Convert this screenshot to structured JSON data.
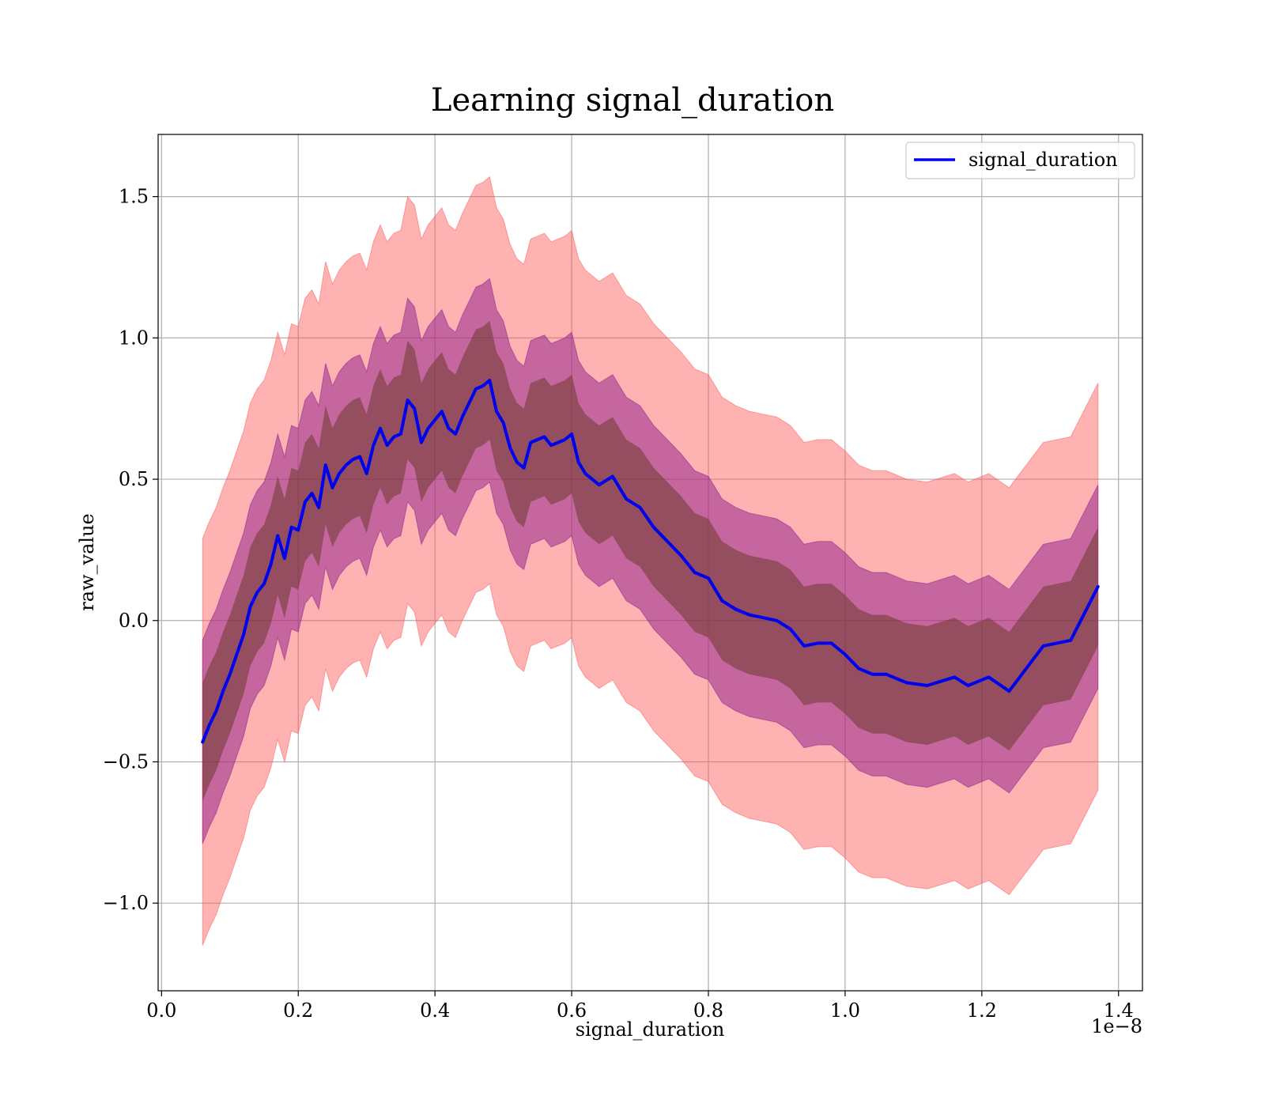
{
  "chart_data": {
    "type": "line",
    "title": "Learning signal_duration",
    "xlabel": "signal_duration",
    "ylabel": "raw_value",
    "x_offset_label": "1e−8",
    "xlim": [
      -0.005,
      1.435
    ],
    "ylim": [
      -1.31,
      1.72
    ],
    "x_ticks": [
      0.0,
      0.2,
      0.4,
      0.6,
      0.8,
      1.0,
      1.2,
      1.4
    ],
    "x_tick_labels": [
      "0.0",
      "0.2",
      "0.4",
      "0.6",
      "0.8",
      "1.0",
      "1.2",
      "1.4"
    ],
    "y_ticks": [
      -1.0,
      -0.5,
      0.0,
      0.5,
      1.0,
      1.5
    ],
    "y_tick_labels": [
      "−1.0",
      "−0.5",
      "0.0",
      "0.5",
      "1.0",
      "1.5"
    ],
    "grid": true,
    "legend": {
      "position": "top-right",
      "entries": [
        "signal_duration"
      ]
    },
    "colors": {
      "line": "#0000ee",
      "outer_band": "#ff5555",
      "inner_band": "#8b1a8b",
      "core_band": "#6b3a2a",
      "grid": "#b0b0b0"
    },
    "series": [
      {
        "name": "signal_duration",
        "x": [
          0.06,
          0.07,
          0.08,
          0.09,
          0.1,
          0.11,
          0.12,
          0.13,
          0.14,
          0.15,
          0.16,
          0.17,
          0.18,
          0.19,
          0.2,
          0.21,
          0.22,
          0.23,
          0.24,
          0.25,
          0.26,
          0.27,
          0.28,
          0.29,
          0.3,
          0.31,
          0.32,
          0.33,
          0.34,
          0.35,
          0.36,
          0.37,
          0.38,
          0.39,
          0.4,
          0.41,
          0.42,
          0.43,
          0.44,
          0.45,
          0.46,
          0.47,
          0.48,
          0.49,
          0.5,
          0.51,
          0.52,
          0.53,
          0.54,
          0.55,
          0.56,
          0.57,
          0.58,
          0.59,
          0.6,
          0.61,
          0.62,
          0.64,
          0.66,
          0.68,
          0.7,
          0.72,
          0.74,
          0.76,
          0.78,
          0.8,
          0.82,
          0.84,
          0.86,
          0.88,
          0.9,
          0.92,
          0.94,
          0.96,
          0.98,
          1.0,
          1.02,
          1.04,
          1.06,
          1.09,
          1.12,
          1.16,
          1.18,
          1.21,
          1.24,
          1.29,
          1.33,
          1.37
        ],
        "y": [
          -0.43,
          -0.37,
          -0.32,
          -0.25,
          -0.19,
          -0.12,
          -0.05,
          0.05,
          0.1,
          0.13,
          0.2,
          0.3,
          0.22,
          0.33,
          0.32,
          0.42,
          0.45,
          0.4,
          0.55,
          0.47,
          0.52,
          0.55,
          0.57,
          0.58,
          0.52,
          0.62,
          0.68,
          0.62,
          0.65,
          0.66,
          0.78,
          0.75,
          0.63,
          0.68,
          0.71,
          0.74,
          0.68,
          0.66,
          0.72,
          0.77,
          0.82,
          0.83,
          0.85,
          0.74,
          0.7,
          0.61,
          0.56,
          0.54,
          0.63,
          0.64,
          0.65,
          0.62,
          0.63,
          0.64,
          0.66,
          0.56,
          0.52,
          0.48,
          0.51,
          0.43,
          0.4,
          0.33,
          0.28,
          0.23,
          0.17,
          0.15,
          0.07,
          0.04,
          0.02,
          0.01,
          0.0,
          -0.03,
          -0.09,
          -0.08,
          -0.08,
          -0.12,
          -0.17,
          -0.19,
          -0.19,
          -0.22,
          -0.23,
          -0.2,
          -0.23,
          -0.2,
          -0.25,
          -0.09,
          -0.07,
          0.12
        ],
        "core_band_half_width": [
          0.21,
          0.21,
          0.21,
          0.21,
          0.21,
          0.21,
          0.21,
          0.21,
          0.21,
          0.21,
          0.21,
          0.21,
          0.21,
          0.21,
          0.21,
          0.21,
          0.21,
          0.21,
          0.21,
          0.21,
          0.21,
          0.21,
          0.21,
          0.21,
          0.21,
          0.21,
          0.21,
          0.21,
          0.21,
          0.21,
          0.21,
          0.21,
          0.21,
          0.21,
          0.21,
          0.21,
          0.21,
          0.21,
          0.21,
          0.21,
          0.21,
          0.21,
          0.21,
          0.21,
          0.21,
          0.21,
          0.21,
          0.21,
          0.21,
          0.21,
          0.21,
          0.21,
          0.21,
          0.21,
          0.21,
          0.21,
          0.21,
          0.21,
          0.21,
          0.21,
          0.21,
          0.21,
          0.21,
          0.21,
          0.21,
          0.21,
          0.21,
          0.21,
          0.21,
          0.21,
          0.21,
          0.21,
          0.21,
          0.21,
          0.21,
          0.21,
          0.21,
          0.21,
          0.21,
          0.21,
          0.21,
          0.21,
          0.21,
          0.21,
          0.21,
          0.21,
          0.21,
          0.21
        ],
        "inner_band_half_width": [
          0.36,
          0.36,
          0.36,
          0.36,
          0.36,
          0.36,
          0.36,
          0.36,
          0.36,
          0.36,
          0.36,
          0.36,
          0.36,
          0.36,
          0.36,
          0.36,
          0.36,
          0.36,
          0.36,
          0.36,
          0.36,
          0.36,
          0.36,
          0.36,
          0.36,
          0.36,
          0.36,
          0.36,
          0.36,
          0.36,
          0.36,
          0.36,
          0.36,
          0.36,
          0.36,
          0.36,
          0.36,
          0.36,
          0.36,
          0.36,
          0.36,
          0.36,
          0.36,
          0.36,
          0.36,
          0.36,
          0.36,
          0.36,
          0.36,
          0.36,
          0.36,
          0.36,
          0.36,
          0.36,
          0.36,
          0.36,
          0.36,
          0.36,
          0.36,
          0.36,
          0.36,
          0.36,
          0.36,
          0.36,
          0.36,
          0.36,
          0.36,
          0.36,
          0.36,
          0.36,
          0.36,
          0.36,
          0.36,
          0.36,
          0.36,
          0.36,
          0.36,
          0.36,
          0.36,
          0.36,
          0.36,
          0.36,
          0.36,
          0.36,
          0.36,
          0.36,
          0.36,
          0.36
        ],
        "outer_band_half_width": [
          0.72,
          0.72,
          0.72,
          0.72,
          0.72,
          0.72,
          0.72,
          0.72,
          0.72,
          0.72,
          0.72,
          0.72,
          0.72,
          0.72,
          0.72,
          0.72,
          0.72,
          0.72,
          0.72,
          0.72,
          0.72,
          0.72,
          0.72,
          0.72,
          0.72,
          0.72,
          0.72,
          0.72,
          0.72,
          0.72,
          0.72,
          0.72,
          0.72,
          0.72,
          0.72,
          0.72,
          0.72,
          0.72,
          0.72,
          0.72,
          0.72,
          0.72,
          0.72,
          0.72,
          0.72,
          0.72,
          0.72,
          0.72,
          0.72,
          0.72,
          0.72,
          0.72,
          0.72,
          0.72,
          0.72,
          0.72,
          0.72,
          0.72,
          0.72,
          0.72,
          0.72,
          0.72,
          0.72,
          0.72,
          0.72,
          0.72,
          0.72,
          0.72,
          0.72,
          0.72,
          0.72,
          0.72,
          0.72,
          0.72,
          0.72,
          0.72,
          0.72,
          0.72,
          0.72,
          0.72,
          0.72,
          0.72,
          0.72,
          0.72,
          0.72,
          0.72,
          0.72,
          0.72
        ]
      }
    ]
  }
}
